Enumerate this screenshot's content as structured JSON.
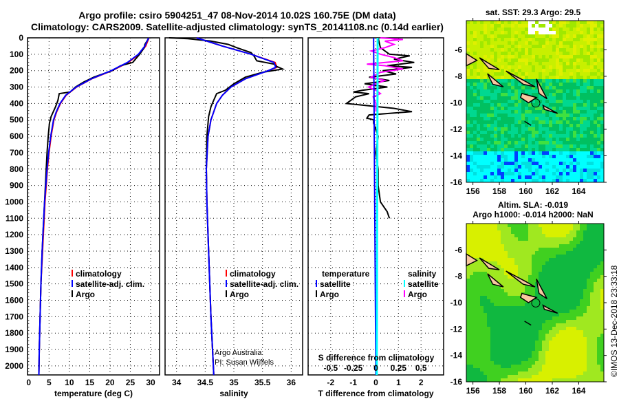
{
  "title_line1": "Argo profile: csiro 5904251_47 08-Nov-2014 10.02S 160.75E (DM data)",
  "title_line2": "Climatology: CARS2009. Satellite-adjusted climatology: synTS_20141108.nc (0.14d earlier)",
  "colors": {
    "climatology": "#ff0000",
    "satellite": "#0000ff",
    "argo": "#000000",
    "sal_satellite": "#00ffff",
    "sal_argo": "#ff00ff"
  },
  "chart_data": [
    {
      "type": "line",
      "name": "temperature",
      "xlabel": "temperature (deg C)",
      "xlim": [
        -0.3,
        32.2
      ],
      "ylim": [
        2055,
        0
      ],
      "xticks": [
        0,
        5,
        10,
        15,
        20,
        25,
        30
      ],
      "yticks": [
        0,
        100,
        200,
        300,
        400,
        500,
        600,
        700,
        800,
        900,
        1000,
        1100,
        1200,
        1300,
        1400,
        1500,
        1600,
        1700,
        1800,
        1900,
        2000
      ],
      "legend": [
        "climatology",
        "satellite-adj. clim.",
        "Argo"
      ],
      "series": [
        {
          "name": "Argo",
          "depth": [
            0,
            40,
            60,
            100,
            150,
            170,
            200,
            240,
            270,
            300,
            330,
            340,
            380,
            420,
            480,
            520,
            600,
            700,
            800,
            900,
            1000,
            1100,
            1200,
            1300,
            1500,
            1700,
            1900,
            2055
          ],
          "values": [
            29.6,
            28.6,
            28.4,
            27.3,
            25.6,
            22.6,
            20.5,
            16,
            13.5,
            11.5,
            10.2,
            7.5,
            7.2,
            6.6,
            5.5,
            5.1,
            4.8,
            4.5,
            4.3,
            4.1,
            3.9,
            3.7,
            3.5,
            3.3,
            3.0,
            2.8,
            2.6,
            2.5
          ]
        },
        {
          "name": "climatology",
          "depth": [
            0,
            50,
            100,
            150,
            200,
            250,
            300,
            350,
            400,
            450,
            500,
            600,
            700,
            800,
            900,
            1000,
            1100,
            1200,
            1300,
            1500,
            1700,
            1900,
            2055
          ],
          "values": [
            29.6,
            28.8,
            27.2,
            24.5,
            20.5,
            15.5,
            11.8,
            9.2,
            7.8,
            6.9,
            6.2,
            5.5,
            5,
            4.6,
            4.3,
            4.0,
            3.8,
            3.6,
            3.4,
            3.0,
            2.8,
            2.6,
            2.5
          ]
        },
        {
          "name": "satellite-adj. clim.",
          "depth": [
            0,
            50,
            100,
            150,
            200,
            250,
            300,
            350,
            400,
            450,
            500,
            600,
            700,
            800,
            900,
            1000,
            1100,
            1200,
            1300,
            1500,
            1700,
            1900,
            2055
          ],
          "values": [
            29.5,
            28.6,
            27.0,
            24.3,
            20.3,
            15.4,
            11.7,
            9.1,
            7.7,
            6.8,
            6.1,
            5.4,
            4.9,
            4.5,
            4.2,
            3.9,
            3.7,
            3.5,
            3.3,
            3.0,
            2.8,
            2.6,
            2.5
          ]
        }
      ]
    },
    {
      "type": "line",
      "name": "salinity",
      "xlabel": "salinity",
      "xlim": [
        33.8,
        36.2
      ],
      "ylim": [
        2055,
        0
      ],
      "xticks": [
        34,
        34.5,
        35,
        35.5,
        36
      ],
      "legend": [
        "climatology",
        "satellite-adj. clim.",
        "Argo"
      ],
      "annotation": [
        "Argo Australia",
        "PI: Susan Wijffels"
      ],
      "series": [
        {
          "name": "Argo",
          "depth": [
            0,
            5,
            20,
            40,
            60,
            90,
            110,
            140,
            160,
            175,
            190,
            210,
            240,
            280,
            320,
            340,
            380,
            420,
            480,
            600,
            800,
            1000,
            1300,
            1500,
            1700,
            2055
          ],
          "values": [
            33.87,
            34.2,
            34.6,
            34.9,
            35.05,
            35.3,
            35.35,
            35.4,
            35.7,
            35.75,
            35.85,
            35.5,
            35.2,
            35.0,
            34.85,
            34.7,
            34.65,
            34.6,
            34.56,
            34.53,
            34.52,
            34.53,
            34.56,
            34.58,
            34.6,
            34.65
          ]
        },
        {
          "name": "climatology",
          "depth": [
            0,
            50,
            100,
            150,
            180,
            200,
            250,
            300,
            350,
            400,
            500,
            600,
            800,
            1000,
            1300,
            1500,
            1700,
            2055
          ],
          "values": [
            34.35,
            34.8,
            35.3,
            35.72,
            35.75,
            35.6,
            35.2,
            34.95,
            34.8,
            34.7,
            34.6,
            34.55,
            34.52,
            34.53,
            34.56,
            34.58,
            34.6,
            34.65
          ]
        },
        {
          "name": "satellite-adj. clim.",
          "depth": [
            0,
            50,
            100,
            150,
            180,
            200,
            250,
            300,
            350,
            400,
            500,
            600,
            800,
            1000,
            1300,
            1500,
            1700,
            2055
          ],
          "values": [
            34.35,
            34.8,
            35.3,
            35.7,
            35.73,
            35.6,
            35.2,
            34.95,
            34.8,
            34.7,
            34.6,
            34.55,
            34.52,
            34.53,
            34.56,
            34.58,
            34.6,
            34.65
          ]
        }
      ]
    },
    {
      "type": "line",
      "name": "difference",
      "xlabel": "T difference from climatology",
      "x2label": "S difference from climatology",
      "xlim": [
        -3,
        3
      ],
      "x2lim": [
        -0.75,
        0.75
      ],
      "xticks": [
        -2,
        -1,
        0,
        1,
        2
      ],
      "x2ticks": [
        "-0.5",
        "-0.25",
        "0",
        "0.25",
        "0.5"
      ],
      "ylim": [
        2055,
        0
      ],
      "legend_temperature": {
        "title": "temperature",
        "items": [
          "satellite",
          "Argo"
        ]
      },
      "legend_salinity": {
        "title": "salinity",
        "items": [
          "satellite",
          "Argo"
        ]
      },
      "series": [
        {
          "name": "T satellite",
          "depth": [
            0,
            2055
          ],
          "values": [
            -0.1,
            0
          ]
        },
        {
          "name": "T Argo",
          "depth": [
            0,
            60,
            100,
            110,
            130,
            150,
            170,
            180,
            200,
            220,
            240,
            260,
            280,
            300,
            320,
            330,
            340,
            360,
            400,
            430,
            450,
            470,
            490,
            500,
            520,
            560,
            600,
            700,
            800,
            900,
            1000,
            1060,
            1100
          ],
          "values": [
            0.1,
            0.2,
            0.6,
            1.5,
            0.8,
            1.7,
            0.5,
            1.6,
            0.3,
            0.9,
            -0.3,
            0.6,
            -0.5,
            0.5,
            -0.6,
            -1.0,
            -0.3,
            -0.9,
            -1.3,
            0.8,
            1.6,
            -0.3,
            -0.4,
            -0.1,
            -0.1,
            0,
            0.1,
            0,
            0.1,
            0.1,
            0.2,
            0.5,
            0.6
          ]
        },
        {
          "name": "S satellite",
          "depth": [
            0,
            2055
          ],
          "values": [
            0.02,
            0.01
          ]
        },
        {
          "name": "S Argo",
          "depth": [
            0,
            10,
            20,
            40,
            60,
            80,
            100,
            120,
            140,
            160,
            170,
            190,
            210,
            240,
            260,
            280,
            300,
            320,
            340,
            360,
            400,
            450
          ],
          "values": [
            0.05,
            0.3,
            0.1,
            0.2,
            0.1,
            -0.05,
            0.05,
            0.2,
            0.3,
            -0.1,
            0.1,
            0.3,
            0.05,
            -0.05,
            0.1,
            0.0,
            -0.08,
            0.0,
            0.05,
            -0.03,
            0.0,
            0.0
          ]
        }
      ]
    }
  ],
  "map_sst": {
    "title": "sat. SST: 29.3 Argo: 29.5",
    "xticks": [
      "156",
      "158",
      "160",
      "162",
      "164"
    ],
    "yticks": [
      "-6",
      "-8",
      "-10",
      "-12",
      "-14",
      "-16"
    ]
  },
  "map_sla": {
    "title1": "Altim. SLA: -0.019",
    "title2": "Argo h1000: -0.014 h2000: NaN",
    "xticks": [
      "156",
      "158",
      "160",
      "162",
      "164"
    ],
    "yticks": [
      "-6",
      "-8",
      "-10",
      "-12",
      "-14",
      "-16"
    ]
  },
  "credit": "©IMOS 13-Dec-2018 23:33:18"
}
